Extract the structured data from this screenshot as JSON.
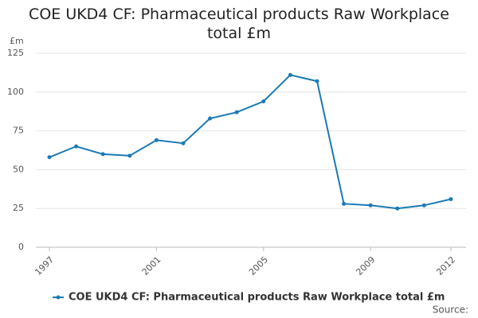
{
  "chart_data": {
    "type": "line",
    "title": "COE UKD4 CF: Pharmaceutical products Raw Workplace total £m",
    "y_label": "£m",
    "source": "Source:",
    "x": [
      1997,
      1998,
      1999,
      2000,
      2001,
      2002,
      2003,
      2004,
      2005,
      2006,
      2007,
      2008,
      2009,
      2010,
      2011,
      2012
    ],
    "series": [
      {
        "name": "COE UKD4 CF: Pharmaceutical products Raw Workplace total £m",
        "color": "#1a7ab5",
        "values": [
          58,
          65,
          60,
          59,
          69,
          67,
          83,
          87,
          94,
          111,
          107,
          28,
          27,
          25,
          27,
          31
        ]
      }
    ],
    "xlim": [
      1997,
      2012
    ],
    "xticks": [
      1997,
      2001,
      2005,
      2009,
      2012
    ],
    "ylim": [
      0,
      125
    ],
    "yticks": [
      0,
      25,
      50,
      75,
      100,
      125
    ],
    "grid": true
  }
}
